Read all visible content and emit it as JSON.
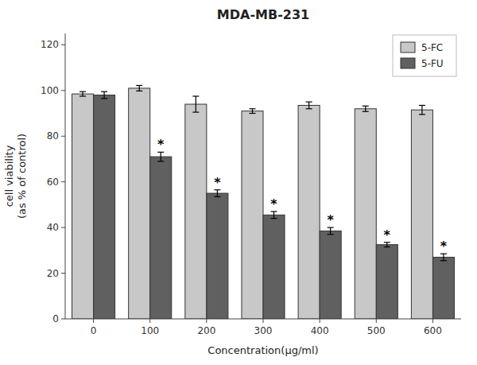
{
  "chart_data": {
    "type": "bar",
    "title": "MDA-MB-231",
    "xlabel": "Concentration(μg/ml)",
    "ylabel": "cell viability\n(as % of control)",
    "categories": [
      "0",
      "100",
      "200",
      "300",
      "400",
      "500",
      "600"
    ],
    "series": [
      {
        "name": "5-FC",
        "color": "#c8c8c8",
        "values": [
          98.5,
          101.0,
          94.0,
          91.0,
          93.5,
          92.0,
          91.5
        ],
        "errors": [
          1.0,
          1.2,
          3.5,
          1.0,
          1.5,
          1.2,
          2.0
        ]
      },
      {
        "name": "5-FU",
        "color": "#606060",
        "values": [
          98.0,
          71.0,
          55.0,
          45.5,
          38.5,
          32.5,
          27.0
        ],
        "errors": [
          1.5,
          2.0,
          1.5,
          1.5,
          1.5,
          1.0,
          1.5
        ]
      }
    ],
    "annotations": [
      {
        "text": "*",
        "series": "5-FU",
        "category": "100"
      },
      {
        "text": "*",
        "series": "5-FU",
        "category": "200"
      },
      {
        "text": "*",
        "series": "5-FU",
        "category": "300"
      },
      {
        "text": "*",
        "series": "5-FU",
        "category": "400"
      },
      {
        "text": "*",
        "series": "5-FU",
        "category": "500"
      },
      {
        "text": "*",
        "series": "5-FU",
        "category": "600"
      }
    ],
    "ylim": [
      0,
      125
    ],
    "yticks": [
      0,
      20,
      40,
      60,
      80,
      100,
      120
    ],
    "grid": false,
    "legend": "upper right"
  }
}
